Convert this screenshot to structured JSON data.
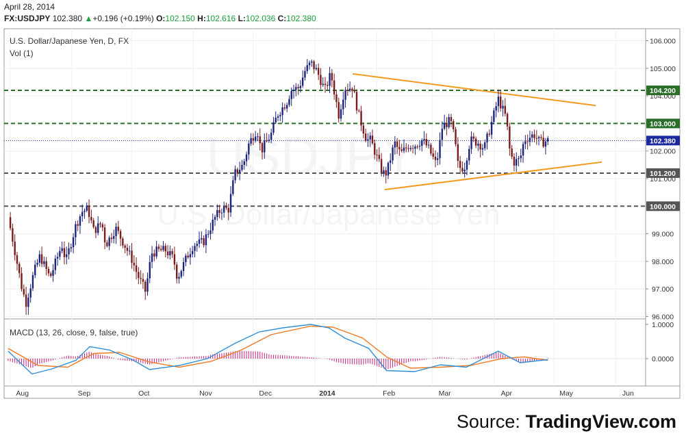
{
  "header": {
    "date": "April 28, 2014",
    "symbol": "FX:USDJPY",
    "last": "102.380",
    "change": "+0.196 (+0.19%)",
    "o_label": "O:",
    "o_value": "102.150",
    "h_label": "H:",
    "h_value": "102.616",
    "l_label": "L:",
    "l_value": "102.036",
    "c_label": "C:",
    "c_value": "102.380"
  },
  "colors": {
    "up": "#1a237e",
    "down": "#7b1a1a",
    "trendline": "#f29a1e",
    "level_green": "#2a6e2a",
    "level_grey": "#555555",
    "current": "#1a2a9e",
    "macd": "#2f8fd8",
    "signal": "#f07a22",
    "hist": "#c8207a"
  },
  "source": {
    "prefix": "Source: ",
    "brand": "TradingView.com"
  },
  "watermark": {
    "small": "U.S. Dollar/Japanese Yen",
    "big": "USDJPY"
  },
  "chart_data": [
    {
      "type": "candlestick",
      "title": "U.S. Dollar/Japanese Yen, D, FX",
      "subtitle": "Vol (1)",
      "y_ticks": [
        "96.000",
        "97.000",
        "98.000",
        "99.000",
        "100.000",
        "101.000",
        "102.000",
        "103.000",
        "104.000",
        "105.000",
        "106.000"
      ],
      "x_labels": [
        "Aug",
        "Sep",
        "Oct",
        "Nov",
        "Dec",
        "2014",
        "Feb",
        "Mar",
        "Apr",
        "May",
        "Jun"
      ],
      "ylim": [
        95.95,
        106.25
      ],
      "horizontal_levels": [
        {
          "value": 104.2,
          "label": "104.200",
          "style": "dashed",
          "color": "green"
        },
        {
          "value": 103.0,
          "label": "103.000",
          "style": "dashed",
          "color": "green"
        },
        {
          "value": 101.2,
          "label": "101.200",
          "style": "dashed",
          "color": "grey"
        },
        {
          "value": 100.0,
          "label": "100.000",
          "style": "dashed",
          "color": "grey"
        }
      ],
      "current_price": {
        "value": 102.38,
        "label": "102.380"
      },
      "trendlines": [
        {
          "name": "upper",
          "from": {
            "date": "2014-01-20",
            "value": 104.8
          },
          "to": {
            "date": "2014-05-22",
            "value": 103.65
          }
        },
        {
          "name": "lower",
          "from": {
            "date": "2014-02-05",
            "value": 100.6
          },
          "to": {
            "date": "2014-05-25",
            "value": 101.6
          }
        }
      ],
      "waypoints": [
        [
          "2013-07-31",
          99.6
        ],
        [
          "2013-08-02",
          98.9
        ],
        [
          "2013-08-07",
          97.0
        ],
        [
          "2013-08-09",
          96.5
        ],
        [
          "2013-08-13",
          97.6
        ],
        [
          "2013-08-16",
          98.2
        ],
        [
          "2013-08-21",
          97.4
        ],
        [
          "2013-08-27",
          98.6
        ],
        [
          "2013-08-29",
          98.0
        ],
        [
          "2013-09-03",
          99.3
        ],
        [
          "2013-09-06",
          99.8
        ],
        [
          "2013-09-09",
          99.9
        ],
        [
          "2013-09-12",
          99.1
        ],
        [
          "2013-09-16",
          99.4
        ],
        [
          "2013-09-18",
          98.6
        ],
        [
          "2013-09-23",
          99.2
        ],
        [
          "2013-09-26",
          98.8
        ],
        [
          "2013-10-01",
          98.1
        ],
        [
          "2013-10-04",
          97.5
        ],
        [
          "2013-10-08",
          96.9
        ],
        [
          "2013-10-11",
          98.3
        ],
        [
          "2013-10-15",
          98.4
        ],
        [
          "2013-10-18",
          98.4
        ],
        [
          "2013-10-22",
          98.1
        ],
        [
          "2013-10-24",
          97.4
        ],
        [
          "2013-10-29",
          98.2
        ],
        [
          "2013-11-01",
          98.6
        ],
        [
          "2013-11-06",
          98.7
        ],
        [
          "2013-11-08",
          99.0
        ],
        [
          "2013-11-12",
          99.6
        ],
        [
          "2013-11-15",
          99.9
        ],
        [
          "2013-11-19",
          99.9
        ],
        [
          "2013-11-20",
          100.5
        ],
        [
          "2013-11-22",
          101.2
        ],
        [
          "2013-11-26",
          101.5
        ],
        [
          "2013-11-29",
          102.3
        ],
        [
          "2013-12-03",
          102.8
        ],
        [
          "2013-12-05",
          102.0
        ],
        [
          "2013-12-10",
          102.6
        ],
        [
          "2013-12-13",
          103.3
        ],
        [
          "2013-12-18",
          103.8
        ],
        [
          "2013-12-20",
          104.2
        ],
        [
          "2013-12-24",
          104.3
        ],
        [
          "2013-12-27",
          104.9
        ],
        [
          "2013-12-30",
          105.2
        ],
        [
          "2014-01-02",
          104.9
        ],
        [
          "2014-01-06",
          104.2
        ],
        [
          "2014-01-09",
          104.8
        ],
        [
          "2014-01-13",
          103.3
        ],
        [
          "2014-01-16",
          104.3
        ],
        [
          "2014-01-20",
          104.3
        ],
        [
          "2014-01-23",
          103.3
        ],
        [
          "2014-01-27",
          102.4
        ],
        [
          "2014-01-29",
          102.4
        ],
        [
          "2014-01-31",
          102.0
        ],
        [
          "2014-02-04",
          101.2
        ],
        [
          "2014-02-06",
          101.2
        ],
        [
          "2014-02-10",
          102.3
        ],
        [
          "2014-02-13",
          101.9
        ],
        [
          "2014-02-17",
          102.2
        ],
        [
          "2014-02-20",
          102.2
        ],
        [
          "2014-02-24",
          102.4
        ],
        [
          "2014-02-27",
          102.1
        ],
        [
          "2014-03-03",
          101.5
        ],
        [
          "2014-03-06",
          102.9
        ],
        [
          "2014-03-10",
          103.1
        ],
        [
          "2014-03-12",
          102.5
        ],
        [
          "2014-03-14",
          101.4
        ],
        [
          "2014-03-17",
          101.4
        ],
        [
          "2014-03-20",
          102.4
        ],
        [
          "2014-03-24",
          102.3
        ],
        [
          "2014-03-27",
          102.1
        ],
        [
          "2014-03-31",
          103.1
        ],
        [
          "2014-04-03",
          103.9
        ],
        [
          "2014-04-07",
          103.2
        ],
        [
          "2014-04-09",
          101.9
        ],
        [
          "2014-04-11",
          101.6
        ],
        [
          "2014-04-14",
          101.7
        ],
        [
          "2014-04-16",
          102.4
        ],
        [
          "2014-04-21",
          102.6
        ],
        [
          "2014-04-24",
          102.3
        ],
        [
          "2014-04-28",
          102.38
        ]
      ]
    },
    {
      "type": "line",
      "title": "MACD (13, 26, close, 9, false, true)",
      "y_ticks": [
        "0.0000",
        "1.0000"
      ],
      "ylim": [
        -0.45,
        1.05
      ],
      "series": [
        {
          "id": "macd",
          "color": "blue",
          "points": [
            [
              "2013-07-31",
              0.22
            ],
            [
              "2013-08-12",
              -0.45
            ],
            [
              "2013-08-22",
              -0.3
            ],
            [
              "2013-09-03",
              -0.05
            ],
            [
              "2013-09-10",
              0.35
            ],
            [
              "2013-09-20",
              0.25
            ],
            [
              "2013-10-02",
              -0.05
            ],
            [
              "2013-10-10",
              -0.32
            ],
            [
              "2013-10-25",
              -0.2
            ],
            [
              "2013-11-08",
              0.0
            ],
            [
              "2013-11-22",
              0.45
            ],
            [
              "2013-12-04",
              0.78
            ],
            [
              "2013-12-16",
              0.9
            ],
            [
              "2013-12-30",
              1.0
            ],
            [
              "2014-01-08",
              0.9
            ],
            [
              "2014-01-16",
              0.6
            ],
            [
              "2014-01-28",
              0.3
            ],
            [
              "2014-02-06",
              -0.35
            ],
            [
              "2014-02-20",
              -0.38
            ],
            [
              "2014-03-05",
              -0.18
            ],
            [
              "2014-03-18",
              -0.25
            ],
            [
              "2014-04-03",
              0.22
            ],
            [
              "2014-04-14",
              -0.12
            ],
            [
              "2014-04-28",
              -0.03
            ]
          ]
        },
        {
          "id": "signal",
          "color": "orange",
          "points": [
            [
              "2013-07-31",
              0.3
            ],
            [
              "2013-08-15",
              -0.2
            ],
            [
              "2013-08-30",
              -0.25
            ],
            [
              "2013-09-12",
              0.15
            ],
            [
              "2013-09-25",
              0.18
            ],
            [
              "2013-10-10",
              -0.1
            ],
            [
              "2013-10-25",
              -0.25
            ],
            [
              "2013-11-10",
              -0.08
            ],
            [
              "2013-11-25",
              0.25
            ],
            [
              "2013-12-10",
              0.7
            ],
            [
              "2013-12-30",
              0.95
            ],
            [
              "2014-01-10",
              0.92
            ],
            [
              "2014-01-25",
              0.6
            ],
            [
              "2014-02-06",
              0.05
            ],
            [
              "2014-02-18",
              -0.28
            ],
            [
              "2014-03-05",
              -0.25
            ],
            [
              "2014-03-20",
              -0.2
            ],
            [
              "2014-04-05",
              0.0
            ],
            [
              "2014-04-16",
              0.05
            ],
            [
              "2014-04-28",
              -0.05
            ]
          ]
        }
      ]
    }
  ]
}
